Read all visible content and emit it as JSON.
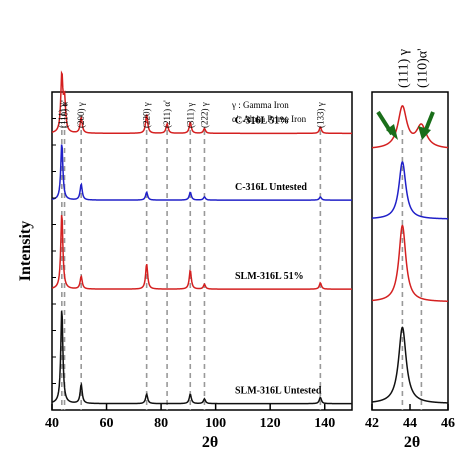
{
  "chart_data": [
    {
      "type": "line",
      "panel": "main",
      "xlabel": "2θ",
      "ylabel": "Intensity",
      "xlim": [
        40,
        150
      ],
      "xticks": [
        40,
        60,
        80,
        100,
        120,
        140
      ],
      "xtick_labels": [
        "40",
        "60",
        "80",
        "100",
        "120",
        "140"
      ],
      "legend": [
        {
          "text": "γ : Gamma Iron"
        },
        {
          "text": "α': Alpha Prime Iron"
        }
      ],
      "peak_markers": [
        {
          "label": "(111) γ",
          "x": 43.6
        },
        {
          "label": "(110) α'",
          "x": 44.6
        },
        {
          "label": "(200) γ",
          "x": 50.7
        },
        {
          "label": "(220) γ",
          "x": 74.7
        },
        {
          "label": "(211) α'",
          "x": 82.2
        },
        {
          "label": "(311) γ",
          "x": 90.7
        },
        {
          "label": "(222) γ",
          "x": 95.9
        },
        {
          "label": "(133) γ",
          "x": 138.4
        }
      ],
      "series": [
        {
          "name": "C-316L 51%",
          "color": "#d42020",
          "baseline": 0.87,
          "peaks": [
            {
              "x": 43.6,
              "h": 0.18
            },
            {
              "x": 44.6,
              "h": 0.1
            },
            {
              "x": 50.7,
              "h": 0.05
            },
            {
              "x": 74.7,
              "h": 0.06
            },
            {
              "x": 82.2,
              "h": 0.03
            },
            {
              "x": 90.7,
              "h": 0.035
            },
            {
              "x": 95.9,
              "h": 0.015
            },
            {
              "x": 138.4,
              "h": 0.02
            }
          ]
        },
        {
          "name": "C-316L Untested",
          "color": "#2020c8",
          "baseline": 0.66,
          "peaks": [
            {
              "x": 43.6,
              "h": 0.18
            },
            {
              "x": 50.7,
              "h": 0.05
            },
            {
              "x": 74.7,
              "h": 0.025
            },
            {
              "x": 90.7,
              "h": 0.025
            },
            {
              "x": 95.9,
              "h": 0.01
            },
            {
              "x": 138.4,
              "h": 0.01
            }
          ]
        },
        {
          "name": "SLM-316L 51%",
          "color": "#d42020",
          "baseline": 0.38,
          "peaks": [
            {
              "x": 43.6,
              "h": 0.24
            },
            {
              "x": 50.7,
              "h": 0.04
            },
            {
              "x": 74.7,
              "h": 0.08
            },
            {
              "x": 90.7,
              "h": 0.06
            },
            {
              "x": 95.9,
              "h": 0.015
            },
            {
              "x": 138.4,
              "h": 0.02
            }
          ]
        },
        {
          "name": "SLM-316L Untested",
          "color": "#111111",
          "baseline": 0.02,
          "peaks": [
            {
              "x": 43.6,
              "h": 0.3
            },
            {
              "x": 50.7,
              "h": 0.06
            },
            {
              "x": 74.7,
              "h": 0.03
            },
            {
              "x": 90.7,
              "h": 0.03
            },
            {
              "x": 95.9,
              "h": 0.015
            },
            {
              "x": 138.4,
              "h": 0.02
            }
          ]
        }
      ]
    },
    {
      "type": "line",
      "panel": "zoom",
      "xlim": [
        42,
        46
      ],
      "xticks": [
        42,
        44,
        46
      ],
      "xtick_labels": [
        "42",
        "44",
        "46"
      ],
      "peak_markers": [
        {
          "label": "(111) γ",
          "x": 43.6
        },
        {
          "label": "(110)α'",
          "x": 44.6
        }
      ],
      "arrows_color": "#1a6e1a",
      "series": [
        {
          "name": "C-316L 51%",
          "color": "#d42020",
          "baseline": 0.82,
          "peaks": [
            {
              "x": 43.6,
              "h": 0.13,
              "w": 0.28
            },
            {
              "x": 44.6,
              "h": 0.07,
              "w": 0.32
            }
          ]
        },
        {
          "name": "C-316L Untested",
          "color": "#2020c8",
          "baseline": 0.6,
          "peaks": [
            {
              "x": 43.6,
              "h": 0.18,
              "w": 0.22
            }
          ]
        },
        {
          "name": "SLM-316L 51%",
          "color": "#d42020",
          "baseline": 0.34,
          "peaks": [
            {
              "x": 43.6,
              "h": 0.24,
              "w": 0.22
            }
          ]
        },
        {
          "name": "SLM-316L Untested",
          "color": "#111111",
          "baseline": 0.02,
          "peaks": [
            {
              "x": 43.6,
              "h": 0.24,
              "w": 0.24
            }
          ]
        }
      ]
    }
  ]
}
